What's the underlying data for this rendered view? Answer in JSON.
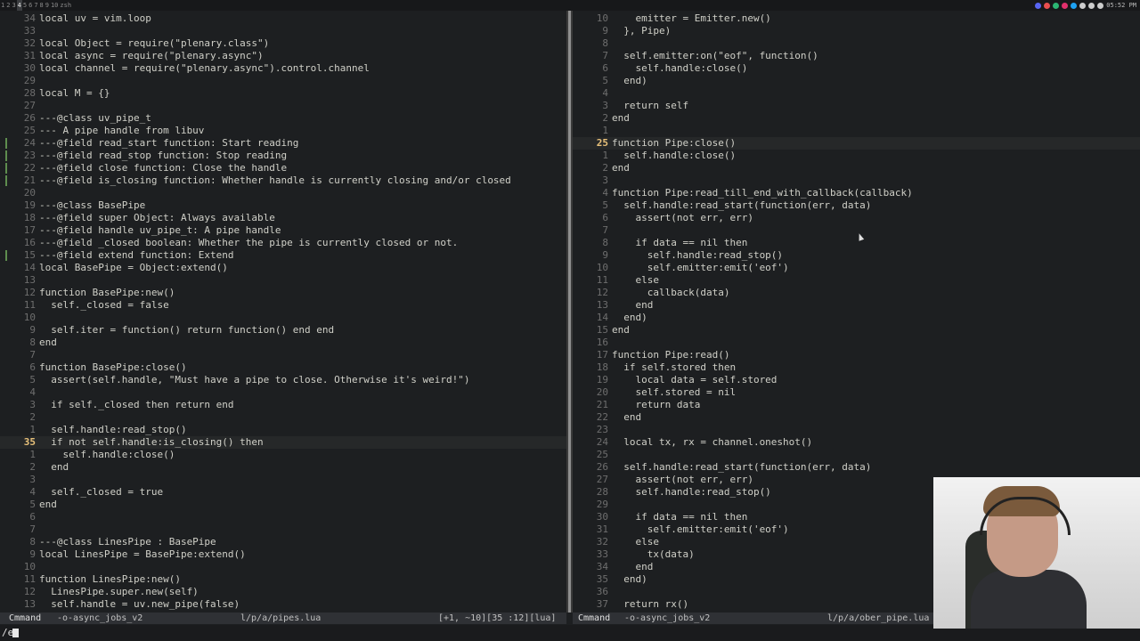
{
  "topbar": {
    "workspaces": [
      "1",
      "2",
      "3",
      "4",
      "5",
      "6",
      "7",
      "8",
      "9",
      "10",
      "zsh"
    ],
    "active_workspace": "4",
    "time": "05:52 PM",
    "tray_colors": [
      "#5865f2",
      "#e84e4e",
      "#2bb673",
      "#e1306c",
      "#1da1f2",
      "#cccccc",
      "#cccccc",
      "#cccccc"
    ]
  },
  "left_pane": {
    "lines": [
      {
        "num": "34",
        "text": "local uv = vim.loop"
      },
      {
        "num": "33",
        "text": ""
      },
      {
        "num": "32",
        "text": "local Object = require(\"plenary.class\")"
      },
      {
        "num": "31",
        "text": "local async = require(\"plenary.async\")"
      },
      {
        "num": "30",
        "text": "local channel = require(\"plenary.async\").control.channel"
      },
      {
        "num": "29",
        "text": ""
      },
      {
        "num": "28",
        "text": "local M = {}"
      },
      {
        "num": "27",
        "text": ""
      },
      {
        "num": "26",
        "text": "---@class uv_pipe_t"
      },
      {
        "num": "25",
        "text": "--- A pipe handle from libuv"
      },
      {
        "num": "24",
        "text": "---@field read_start function: Start reading",
        "mark": true
      },
      {
        "num": "23",
        "text": "---@field read_stop function: Stop reading",
        "mark": true
      },
      {
        "num": "22",
        "text": "---@field close function: Close the handle",
        "mark": true
      },
      {
        "num": "21",
        "text": "---@field is_closing function: Whether handle is currently closing and/or closed",
        "mark": true
      },
      {
        "num": "20",
        "text": ""
      },
      {
        "num": "19",
        "text": "---@class BasePipe"
      },
      {
        "num": "18",
        "text": "---@field super Object: Always available"
      },
      {
        "num": "17",
        "text": "---@field handle uv_pipe_t: A pipe handle"
      },
      {
        "num": "16",
        "text": "---@field _closed boolean: Whether the pipe is currently closed or not."
      },
      {
        "num": "15",
        "text": "---@field extend function: Extend",
        "mark": true
      },
      {
        "num": "14",
        "text": "local BasePipe = Object:extend()"
      },
      {
        "num": "13",
        "text": ""
      },
      {
        "num": "12",
        "text": "function BasePipe:new()"
      },
      {
        "num": "11",
        "text": "  self._closed = false"
      },
      {
        "num": "10",
        "text": ""
      },
      {
        "num": "9",
        "text": "  self.iter = function() return function() end end"
      },
      {
        "num": "8",
        "text": "end"
      },
      {
        "num": "7",
        "text": ""
      },
      {
        "num": "6",
        "text": "function BasePipe:close()"
      },
      {
        "num": "5",
        "text": "  assert(self.handle, \"Must have a pipe to close. Otherwise it's weird!\")"
      },
      {
        "num": "4",
        "text": ""
      },
      {
        "num": "3",
        "text": "  if self._closed then return end"
      },
      {
        "num": "2",
        "text": ""
      },
      {
        "num": "1",
        "text": "  self.handle:read_stop()"
      },
      {
        "num": "35",
        "text": "  if not self.handle:is_closing() then",
        "current": true
      },
      {
        "num": "1",
        "text": "    self.handle:close()"
      },
      {
        "num": "2",
        "text": "  end"
      },
      {
        "num": "3",
        "text": ""
      },
      {
        "num": "4",
        "text": "  self._closed = true"
      },
      {
        "num": "5",
        "text": "end"
      },
      {
        "num": "6",
        "text": ""
      },
      {
        "num": "7",
        "text": ""
      },
      {
        "num": "8",
        "text": "---@class LinesPipe : BasePipe"
      },
      {
        "num": "9",
        "text": "local LinesPipe = BasePipe:extend()"
      },
      {
        "num": "10",
        "text": ""
      },
      {
        "num": "11",
        "text": "function LinesPipe:new()"
      },
      {
        "num": "12",
        "text": "  LinesPipe.super.new(self)"
      },
      {
        "num": "13",
        "text": "  self.handle = uv.new_pipe(false)"
      }
    ]
  },
  "right_pane": {
    "lines": [
      {
        "num": "10",
        "text": "    emitter = Emitter.new()"
      },
      {
        "num": "9",
        "text": "  }, Pipe)"
      },
      {
        "num": "8",
        "text": ""
      },
      {
        "num": "7",
        "text": "  self.emitter:on(\"eof\", function()"
      },
      {
        "num": "6",
        "text": "    self.handle:close()"
      },
      {
        "num": "5",
        "text": "  end)"
      },
      {
        "num": "4",
        "text": ""
      },
      {
        "num": "3",
        "text": "  return self"
      },
      {
        "num": "2",
        "text": "end"
      },
      {
        "num": "1",
        "text": ""
      },
      {
        "num": "25",
        "text": "function Pipe:close()",
        "current": true
      },
      {
        "num": "1",
        "text": "  self.handle:close()"
      },
      {
        "num": "2",
        "text": "end"
      },
      {
        "num": "3",
        "text": ""
      },
      {
        "num": "4",
        "text": "function Pipe:read_till_end_with_callback(callback)"
      },
      {
        "num": "5",
        "text": "  self.handle:read_start(function(err, data)"
      },
      {
        "num": "6",
        "text": "    assert(not err, err)"
      },
      {
        "num": "7",
        "text": ""
      },
      {
        "num": "8",
        "text": "    if data == nil then"
      },
      {
        "num": "9",
        "text": "      self.handle:read_stop()"
      },
      {
        "num": "10",
        "text": "      self.emitter:emit('eof')"
      },
      {
        "num": "11",
        "text": "    else"
      },
      {
        "num": "12",
        "text": "      callback(data)"
      },
      {
        "num": "13",
        "text": "    end"
      },
      {
        "num": "14",
        "text": "  end)"
      },
      {
        "num": "15",
        "text": "end"
      },
      {
        "num": "16",
        "text": ""
      },
      {
        "num": "17",
        "text": "function Pipe:read()"
      },
      {
        "num": "18",
        "text": "  if self.stored then"
      },
      {
        "num": "19",
        "text": "    local data = self.stored"
      },
      {
        "num": "20",
        "text": "    self.stored = nil"
      },
      {
        "num": "21",
        "text": "    return data"
      },
      {
        "num": "22",
        "text": "  end"
      },
      {
        "num": "23",
        "text": ""
      },
      {
        "num": "24",
        "text": "  local tx, rx = channel.oneshot()"
      },
      {
        "num": "25",
        "text": ""
      },
      {
        "num": "26",
        "text": "  self.handle:read_start(function(err, data)"
      },
      {
        "num": "27",
        "text": "    assert(not err, err)"
      },
      {
        "num": "28",
        "text": "    self.handle:read_stop()"
      },
      {
        "num": "29",
        "text": ""
      },
      {
        "num": "30",
        "text": "    if data == nil then"
      },
      {
        "num": "31",
        "text": "      self.emitter:emit('eof')"
      },
      {
        "num": "32",
        "text": "    else"
      },
      {
        "num": "33",
        "text": "      tx(data)"
      },
      {
        "num": "34",
        "text": "    end"
      },
      {
        "num": "35",
        "text": "  end)"
      },
      {
        "num": "36",
        "text": ""
      },
      {
        "num": "37",
        "text": "  return rx()"
      }
    ]
  },
  "statusline_left": {
    "mode": "Cmmand",
    "branch": "-o-async_jobs_v2",
    "file": "l/p/a/pipes.lua",
    "position": "[+1, ~10][35 :12][lua]"
  },
  "statusline_right": {
    "mode": "Cmmand",
    "branch": "-o-async_jobs_v2",
    "file": "l/p/a/ober_pipe.lua"
  },
  "cmdline": {
    "text": "/e"
  }
}
